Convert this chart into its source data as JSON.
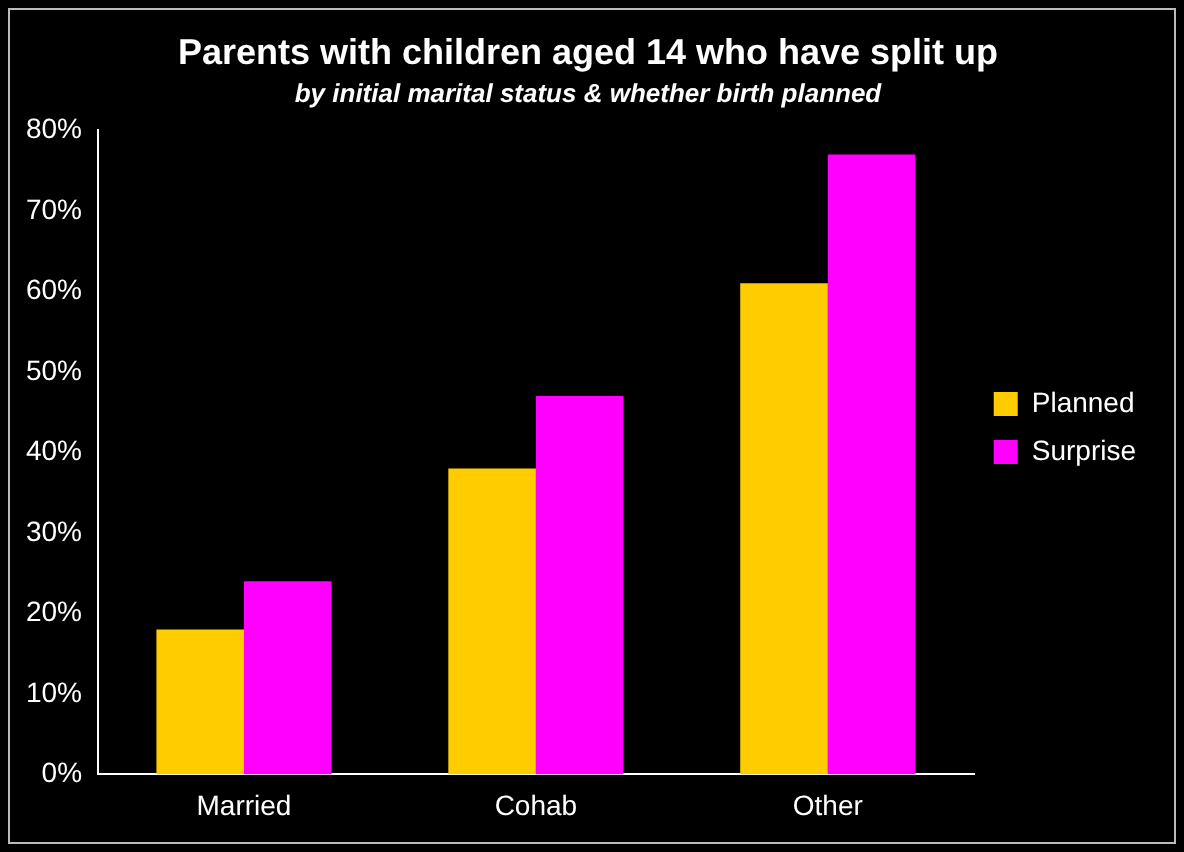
{
  "chart_data": {
    "type": "bar",
    "title": "Parents with children aged 14 who have split up",
    "subtitle": "by initial marital status & whether birth planned",
    "categories": [
      "Married",
      "Cohab",
      "Other"
    ],
    "series": [
      {
        "name": "Planned",
        "color": "#ffcc00",
        "values": [
          18,
          38,
          61
        ]
      },
      {
        "name": "Surprise",
        "color": "#ff00ff",
        "values": [
          24,
          47,
          77
        ]
      }
    ],
    "ylim": [
      0,
      80
    ],
    "yticks": [
      {
        "value": 0,
        "label": "0%"
      },
      {
        "value": 10,
        "label": "10%"
      },
      {
        "value": 20,
        "label": "20%"
      },
      {
        "value": 30,
        "label": "30%"
      },
      {
        "value": 40,
        "label": "40%"
      },
      {
        "value": 50,
        "label": "50%"
      },
      {
        "value": 60,
        "label": "60%"
      },
      {
        "value": 70,
        "label": "70%"
      },
      {
        "value": 80,
        "label": "80%"
      }
    ],
    "grid": false,
    "legend": "right"
  }
}
